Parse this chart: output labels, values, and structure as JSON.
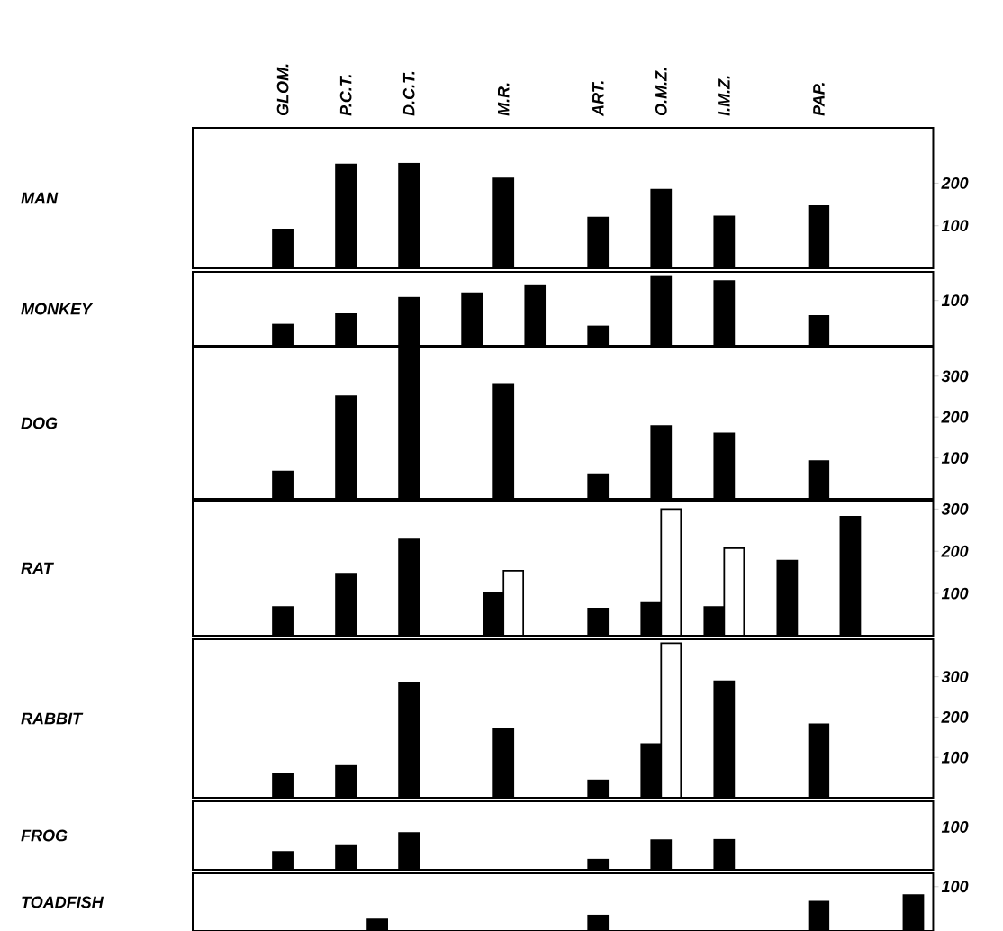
{
  "chart_data": [
    {
      "type": "bar",
      "ylabel": "MAN",
      "categories": [
        "GLOM.",
        null,
        "P.C.T.",
        null,
        "D.C.T.",
        null,
        null,
        "M.R.",
        null,
        null,
        "ART.",
        null,
        "O.M.Z.",
        null,
        "I.M.Z.",
        null,
        null,
        "PAP.",
        null,
        null,
        null
      ],
      "series": [
        {
          "color": "#000000",
          "values": [
            91,
            null,
            244,
            null,
            246,
            null,
            null,
            211,
            null,
            null,
            119,
            null,
            185,
            null,
            122,
            null,
            null,
            146,
            null,
            null,
            null
          ]
        }
      ],
      "ylim": [
        0,
        330
      ],
      "yticks": [
        100,
        200
      ]
    },
    {
      "type": "bar",
      "ylabel": "MONKEY",
      "categories": [
        null,
        null,
        null,
        null,
        null,
        null,
        null,
        null,
        null,
        null,
        null,
        null,
        null,
        null,
        null,
        null,
        null,
        null,
        null,
        null,
        null
      ],
      "series": [
        {
          "color": "#000000",
          "values": [
            47,
            null,
            70,
            null,
            106,
            null,
            116,
            null,
            134,
            null,
            43,
            null,
            154,
            null,
            143,
            null,
            null,
            66,
            null,
            null,
            null
          ]
        }
      ],
      "ylim": [
        0,
        163
      ],
      "yticks": [
        100
      ],
      "tick_labels": "y"
    },
    {
      "type": "bar",
      "ylabel": "DOG",
      "categories": [
        null,
        null,
        null,
        null,
        null,
        null,
        null,
        null,
        null,
        null,
        null,
        null,
        null,
        null,
        null,
        null,
        null,
        null,
        null,
        null,
        null
      ],
      "series": [
        {
          "color": "#000000",
          "values": [
            67,
            null,
            251,
            null,
            370,
            null,
            null,
            281,
            null,
            null,
            60,
            null,
            178,
            null,
            160,
            null,
            null,
            92,
            null,
            null,
            null
          ]
        }
      ],
      "ylim": [
        0,
        370
      ],
      "yticks": [
        100,
        200,
        300
      ],
      "tick_labels": "y"
    },
    {
      "type": "bar",
      "ylabel": "RAT",
      "categories": [
        null,
        null,
        null,
        null,
        null,
        null,
        null,
        null,
        null,
        null,
        null,
        null,
        null,
        null,
        null,
        null,
        null,
        null,
        null,
        null,
        null
      ],
      "series": [
        {
          "color": "#000000",
          "values": [
            68,
            null,
            147,
            null,
            228,
            null,
            null,
            101,
            null,
            null,
            64,
            null,
            78,
            null,
            68,
            null,
            178,
            null,
            282,
            null,
            null
          ]
        },
        {
          "color": "#ffffff",
          "values": [
            null,
            null,
            null,
            null,
            null,
            null,
            null,
            154,
            null,
            null,
            null,
            null,
            300,
            null,
            207,
            null,
            null,
            null,
            null,
            null,
            null
          ]
        }
      ],
      "ylim": [
        0,
        320
      ],
      "yticks": [
        100,
        200,
        300
      ],
      "tick_labels": "y"
    },
    {
      "type": "bar",
      "ylabel": "RABBIT",
      "categories": [
        null,
        null,
        null,
        null,
        null,
        null,
        null,
        null,
        null,
        null,
        null,
        null,
        null,
        null,
        null,
        null,
        null,
        null,
        null,
        null,
        null
      ],
      "series": [
        {
          "color": "#000000",
          "values": [
            58,
            null,
            79,
            null,
            284,
            null,
            null,
            171,
            null,
            null,
            43,
            null,
            133,
            null,
            289,
            null,
            null,
            182,
            null,
            null,
            null
          ]
        },
        {
          "color": "#ffffff",
          "values": [
            null,
            null,
            null,
            null,
            null,
            null,
            null,
            null,
            null,
            null,
            null,
            null,
            383,
            null,
            null,
            null,
            null,
            null,
            null,
            null,
            null
          ]
        }
      ],
      "ylim": [
        0,
        393
      ],
      "yticks": [
        100,
        200,
        300
      ],
      "tick_labels": "y"
    },
    {
      "type": "bar",
      "ylabel": "FROG",
      "categories": [
        null,
        null,
        null,
        null,
        null,
        null,
        null,
        null,
        null,
        null,
        null,
        null,
        null,
        null,
        null,
        null,
        null,
        null,
        null,
        null,
        null
      ],
      "series": [
        {
          "color": "#000000",
          "values": [
            42,
            null,
            58,
            null,
            86,
            null,
            null,
            null,
            null,
            null,
            24,
            null,
            69,
            null,
            70,
            null,
            null,
            null,
            null,
            null,
            null
          ]
        }
      ],
      "ylim": [
        0,
        160
      ],
      "yticks": [
        100
      ],
      "tick_labels": "y"
    },
    {
      "type": "bar",
      "ylabel": "TOADFISH",
      "categories": [
        null,
        null,
        null,
        null,
        null,
        null,
        null,
        null,
        null,
        null,
        null,
        null,
        null,
        null,
        null,
        null,
        null,
        null,
        null,
        null,
        null
      ],
      "series": [
        {
          "color": "#000000",
          "values": [
            null,
            null,
            null,
            26,
            null,
            null,
            null,
            null,
            null,
            null,
            35,
            null,
            null,
            null,
            null,
            null,
            null,
            66,
            null,
            null,
            81
          ]
        }
      ],
      "ylim": [
        0,
        130
      ],
      "yticks": [
        100
      ],
      "tick_labels": "y"
    }
  ]
}
